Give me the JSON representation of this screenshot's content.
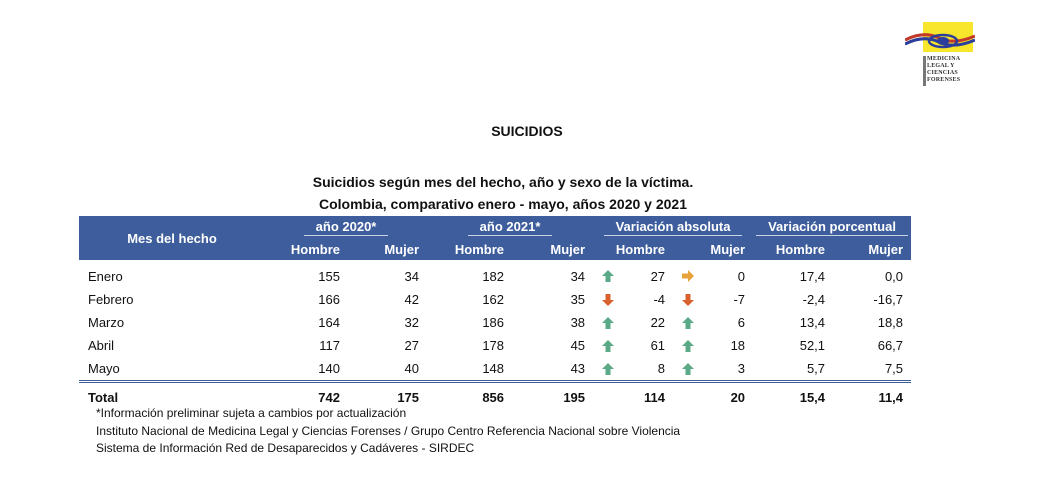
{
  "logo": {
    "name": "medicina-legal-logo-icon",
    "lines": [
      "MEDICINA",
      "LEGAL Y",
      "CIENCIAS",
      "FORENSES"
    ]
  },
  "page_title": "SUICIDIOS",
  "subtitle_1": "Suicidios según mes del hecho, año y sexo de la víctima.",
  "subtitle_2": "Colombia, comparativo enero - mayo, años 2020 y 2021",
  "table": {
    "header_month": "Mes del hecho",
    "groups": [
      "año 2020*",
      "año 2021*",
      "Variación absoluta",
      "Variación porcentual"
    ],
    "sub": [
      "Hombre",
      "Mujer",
      "Hombre",
      "Mujer",
      "Hombre",
      "Mujer",
      "Hombre",
      "Mujer"
    ],
    "colors": {
      "header_bg": "#3d5d9c",
      "up": "#5aa987",
      "down": "#d9622c",
      "flat": "#e8a23a"
    },
    "rows": [
      {
        "month": "Enero",
        "h2020": "155",
        "m2020": "34",
        "h2021": "182",
        "m2021": "34",
        "abs_h": "27",
        "abs_h_icon": "up-arrow-icon",
        "abs_m": "0",
        "abs_m_icon": "right-arrow-icon",
        "pct_h": "17,4",
        "pct_m": "0,0"
      },
      {
        "month": "Febrero",
        "h2020": "166",
        "m2020": "42",
        "h2021": "162",
        "m2021": "35",
        "abs_h": "-4",
        "abs_h_icon": "down-arrow-icon",
        "abs_m": "-7",
        "abs_m_icon": "down-arrow-icon",
        "pct_h": "-2,4",
        "pct_m": "-16,7"
      },
      {
        "month": "Marzo",
        "h2020": "164",
        "m2020": "32",
        "h2021": "186",
        "m2021": "38",
        "abs_h": "22",
        "abs_h_icon": "up-arrow-icon",
        "abs_m": "6",
        "abs_m_icon": "up-arrow-icon",
        "pct_h": "13,4",
        "pct_m": "18,8"
      },
      {
        "month": "Abril",
        "h2020": "117",
        "m2020": "27",
        "h2021": "178",
        "m2021": "45",
        "abs_h": "61",
        "abs_h_icon": "up-arrow-icon",
        "abs_m": "18",
        "abs_m_icon": "up-arrow-icon",
        "pct_h": "52,1",
        "pct_m": "66,7"
      },
      {
        "month": "Mayo",
        "h2020": "140",
        "m2020": "40",
        "h2021": "148",
        "m2021": "43",
        "abs_h": "8",
        "abs_h_icon": "up-arrow-icon",
        "abs_m": "3",
        "abs_m_icon": "up-arrow-icon",
        "pct_h": "5,7",
        "pct_m": "7,5"
      }
    ],
    "total": {
      "label": "Total",
      "h2020": "742",
      "m2020": "175",
      "h2021": "856",
      "m2021": "195",
      "abs_h": "114",
      "abs_m": "20",
      "pct_h": "15,4",
      "pct_m": "11,4"
    }
  },
  "notes": [
    "*Información preliminar sujeta a cambios por actualización",
    "Instituto Nacional de Medicina Legal y Ciencias Forenses / Grupo Centro Referencia Nacional sobre Violencia",
    "Sistema de Información Red de Desaparecidos y Cadáveres - SIRDEC"
  ]
}
